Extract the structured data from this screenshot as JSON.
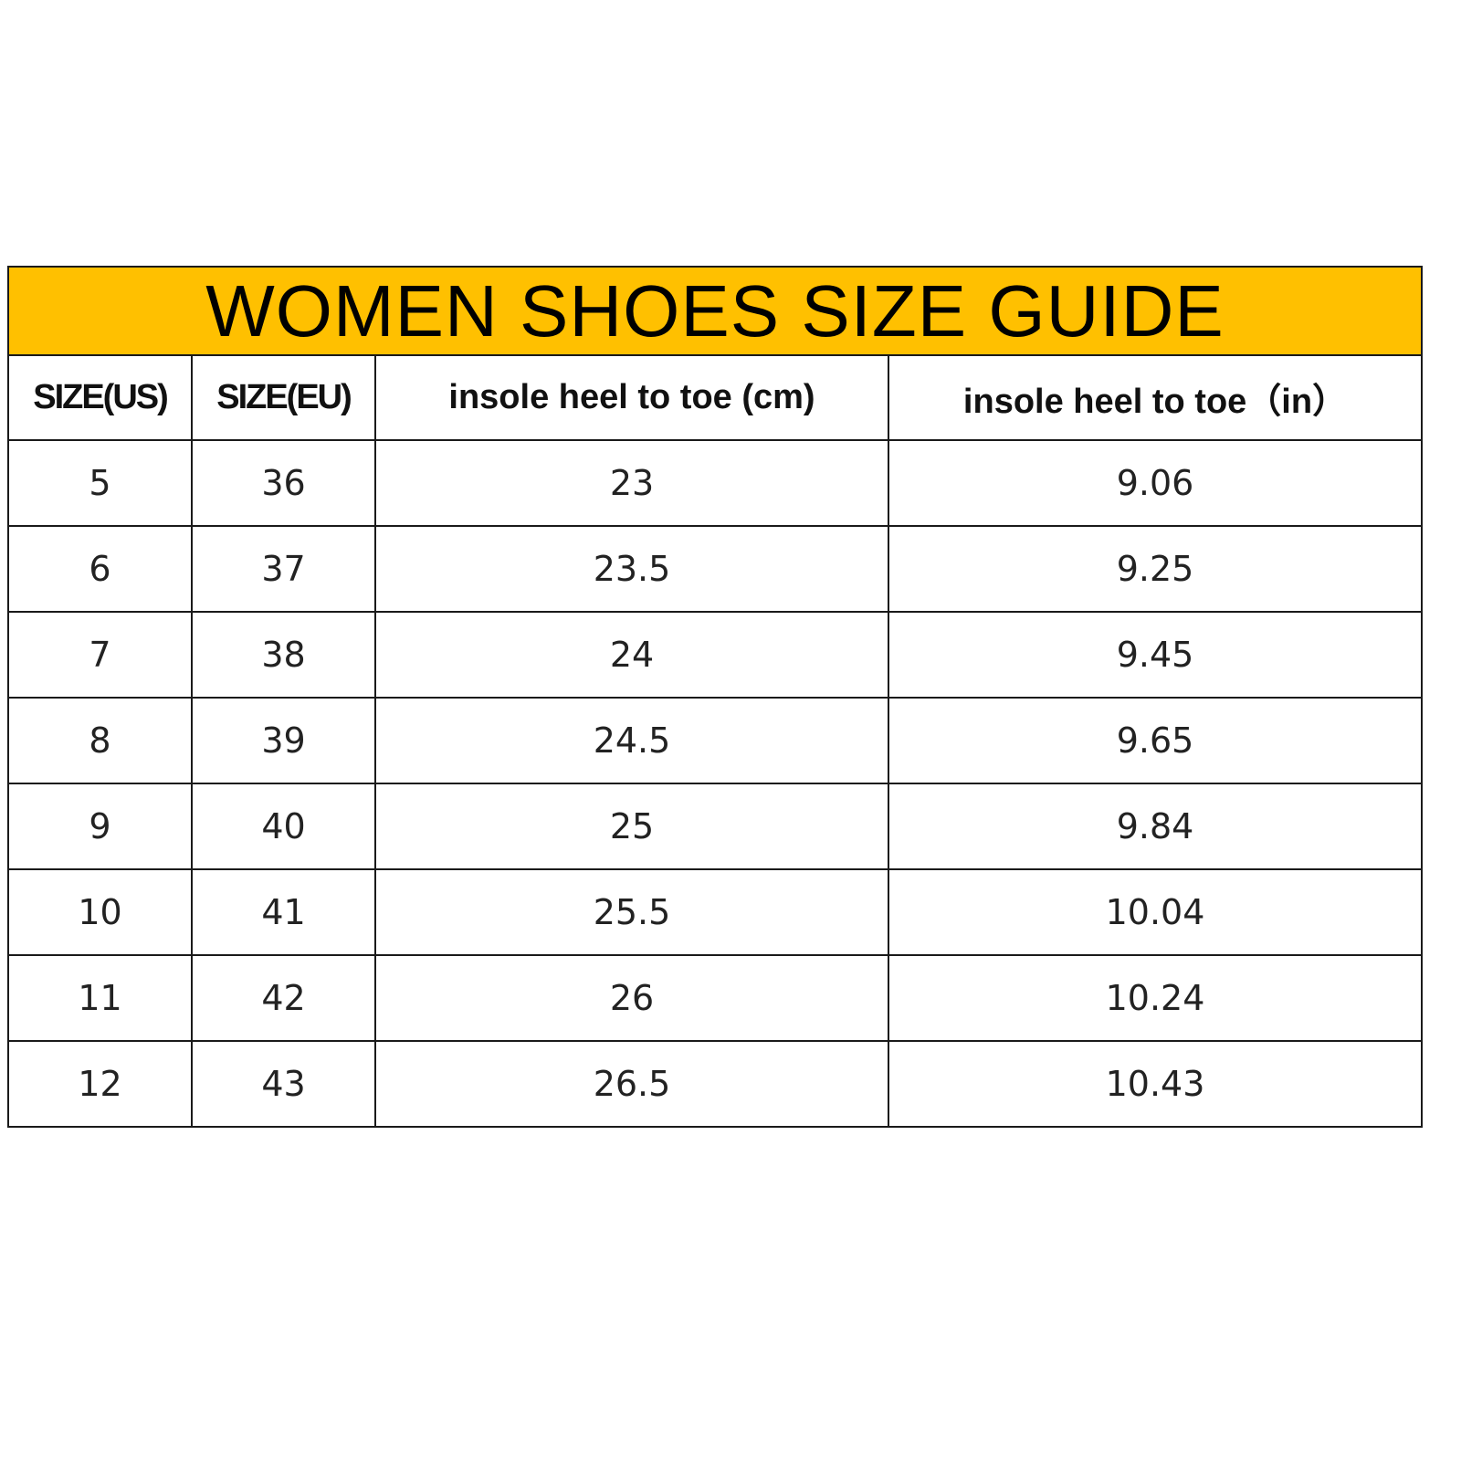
{
  "title": "WOMEN SHOES SIZE GUIDE",
  "colors": {
    "title_background": "#FFC000",
    "border": "#1a1a1a"
  },
  "columns": [
    "SIZE(US)",
    "SIZE(EU)",
    "insole heel to toe (cm)",
    "insole heel to toe（in）"
  ],
  "rows": [
    [
      "5",
      "36",
      "23",
      "9.06"
    ],
    [
      "6",
      "37",
      "23.5",
      "9.25"
    ],
    [
      "7",
      "38",
      "24",
      "9.45"
    ],
    [
      "8",
      "39",
      "24.5",
      "9.65"
    ],
    [
      "9",
      "40",
      "25",
      "9.84"
    ],
    [
      "10",
      "41",
      "25.5",
      "10.04"
    ],
    [
      "11",
      "42",
      "26",
      "10.24"
    ],
    [
      "12",
      "43",
      "26.5",
      "10.43"
    ]
  ]
}
